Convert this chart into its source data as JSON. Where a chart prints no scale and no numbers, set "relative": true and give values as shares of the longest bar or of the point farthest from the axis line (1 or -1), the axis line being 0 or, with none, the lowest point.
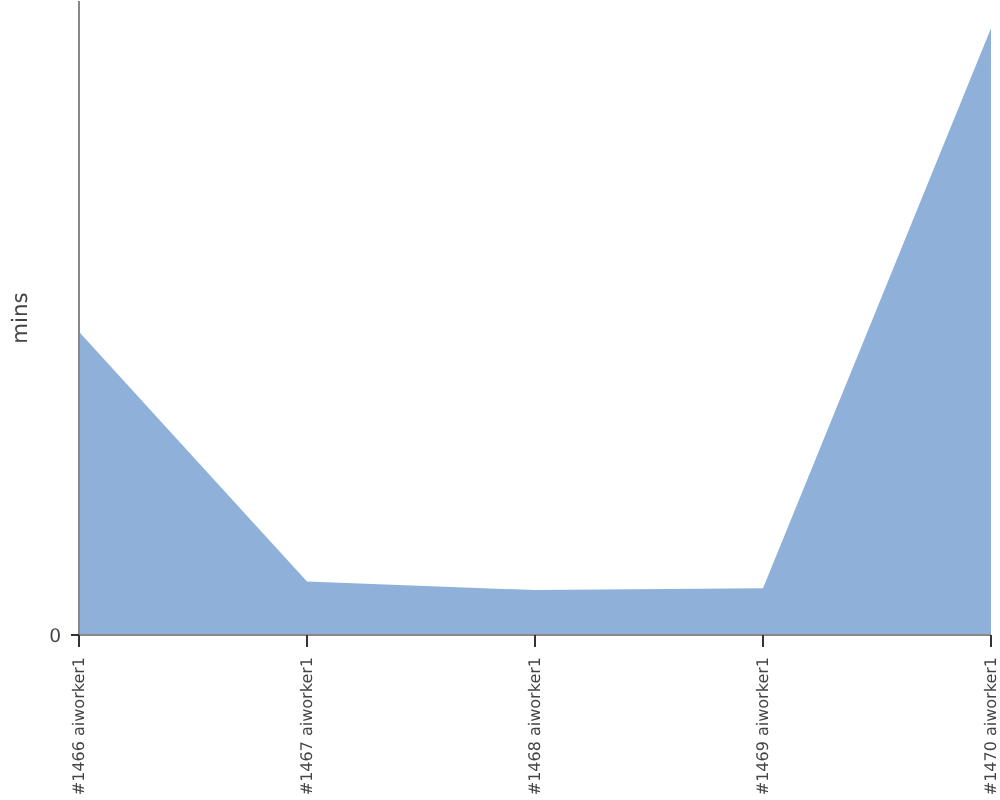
{
  "chart_data": {
    "type": "area",
    "ylabel": "mins",
    "relative": true,
    "annotations": [
      "0"
    ],
    "categories": [
      "#1466 aiworker1",
      "#1467 aiworker1",
      "#1468 aiworker1",
      "#1469 aiworker1",
      "#1470 aiworker1"
    ],
    "series": [
      {
        "color": "#8fb1d9",
        "values": [
          0.5,
          0.088,
          0.074,
          0.077,
          1
        ]
      }
    ],
    "grid": false
  }
}
